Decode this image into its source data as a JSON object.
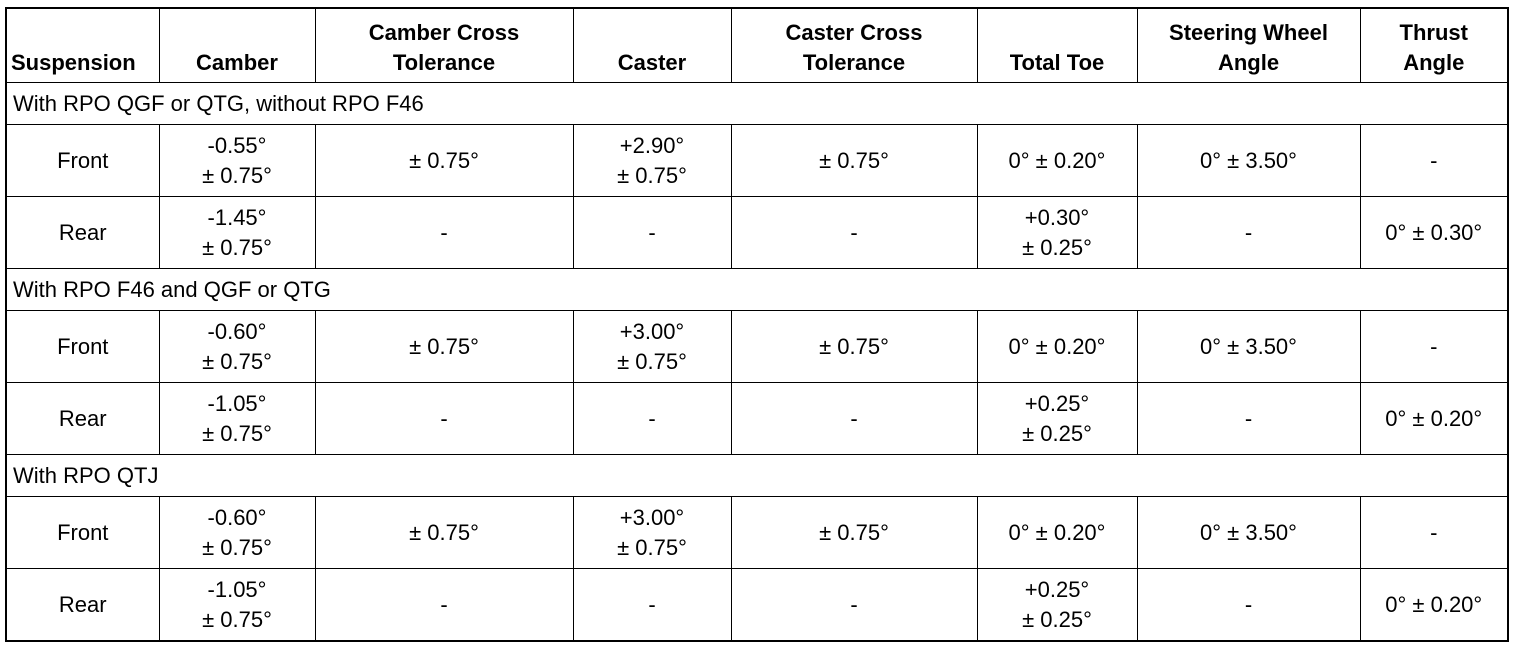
{
  "table": {
    "header": [
      "Suspension",
      "Camber",
      "Camber Cross\nTolerance",
      "Caster",
      "Caster Cross\nTolerance",
      "Total Toe",
      "Steering Wheel\nAngle",
      "Thrust\nAngle"
    ],
    "sections": [
      {
        "title": "With RPO QGF or QTG, without RPO F46",
        "rows": [
          [
            "Front",
            "-0.55°\n± 0.75°",
            "± 0.75°",
            "+2.90°\n± 0.75°",
            "± 0.75°",
            "0° ± 0.20°",
            "0° ± 3.50°",
            "-"
          ],
          [
            "Rear",
            "-1.45°\n± 0.75°",
            "-",
            "-",
            "-",
            "+0.30°\n± 0.25°",
            "-",
            "0° ± 0.30°"
          ]
        ]
      },
      {
        "title": "With RPO F46 and QGF or QTG",
        "rows": [
          [
            "Front",
            "-0.60°\n± 0.75°",
            "± 0.75°",
            "+3.00°\n± 0.75°",
            "± 0.75°",
            "0° ± 0.20°",
            "0° ± 3.50°",
            "-"
          ],
          [
            "Rear",
            "-1.05°\n± 0.75°",
            "-",
            "-",
            "-",
            "+0.25°\n± 0.25°",
            "-",
            "0° ± 0.20°"
          ]
        ]
      },
      {
        "title": "With RPO QTJ",
        "rows": [
          [
            "Front",
            "-0.60°\n± 0.75°",
            "± 0.75°",
            "+3.00°\n± 0.75°",
            "± 0.75°",
            "0° ± 0.20°",
            "0° ± 3.50°",
            "-"
          ],
          [
            "Rear",
            "-1.05°\n± 0.75°",
            "-",
            "-",
            "-",
            "+0.25°\n± 0.25°",
            "-",
            "0° ± 0.20°"
          ]
        ]
      }
    ]
  }
}
